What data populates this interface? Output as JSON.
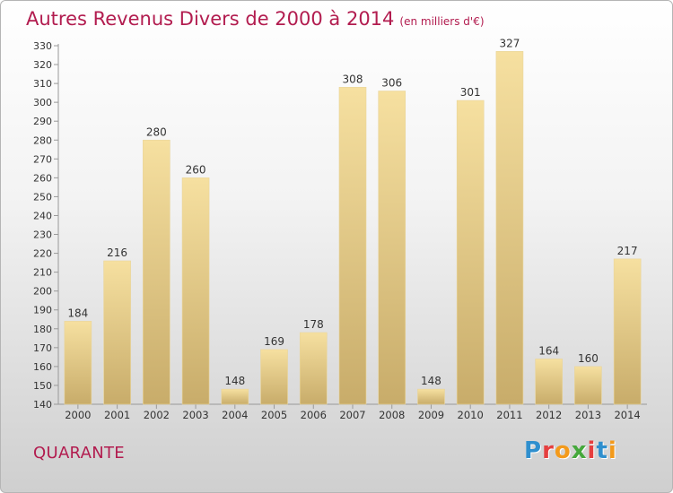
{
  "title": "Autres Revenus Divers de 2000 à 2014",
  "subtitle": "(en milliers d'€)",
  "commune": "QUARANTE",
  "logo": {
    "text": "Proxiti",
    "letters": [
      "P",
      "r",
      "o",
      "x",
      "i",
      "t",
      "i"
    ],
    "colors": [
      "#2f8fce",
      "#e53f3f",
      "#f39a1b",
      "#45a83c",
      "#e53f3f",
      "#2f8fce",
      "#f39a1b"
    ]
  },
  "colors": {
    "title": "#b21c4f",
    "bar_light": "#f6e0a0",
    "bar_dark": "#c8ac6a"
  },
  "chart_data": {
    "type": "bar",
    "categories": [
      "2000",
      "2001",
      "2002",
      "2003",
      "2004",
      "2005",
      "2006",
      "2007",
      "2008",
      "2009",
      "2010",
      "2011",
      "2012",
      "2013",
      "2014"
    ],
    "values": [
      184,
      216,
      280,
      260,
      148,
      169,
      178,
      308,
      306,
      148,
      301,
      327,
      164,
      160,
      217
    ],
    "ylim": [
      140,
      330
    ],
    "yticks": [
      140,
      150,
      160,
      170,
      180,
      190,
      200,
      210,
      220,
      230,
      240,
      250,
      260,
      270,
      280,
      290,
      300,
      310,
      320,
      330
    ],
    "grid": false,
    "legend": "none"
  }
}
